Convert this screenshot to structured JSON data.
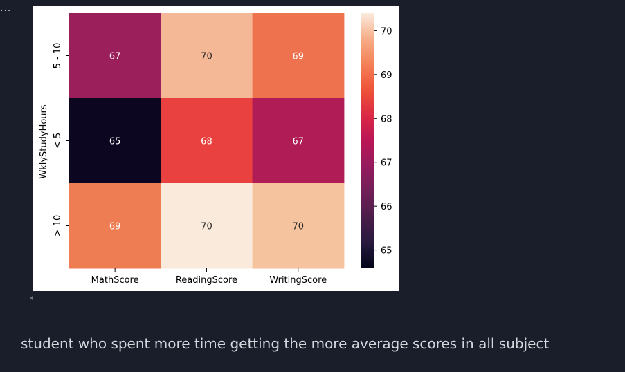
{
  "cell_menu": {
    "label": "..."
  },
  "chart_data": {
    "type": "heatmap",
    "title": "",
    "xlabel": "",
    "ylabel": "WklyStudyHours",
    "x_categories": [
      "MathScore",
      "ReadingScore",
      "WritingScore"
    ],
    "y_categories": [
      "5 - 10",
      "< 5",
      "> 10"
    ],
    "values": [
      [
        67,
        70,
        69
      ],
      [
        65,
        68,
        67
      ],
      [
        69,
        70,
        70
      ]
    ],
    "colorbar": {
      "min": 64.6,
      "max": 70.4,
      "ticks": [
        65,
        66,
        67,
        68,
        69,
        70
      ],
      "colormap": "rocket"
    },
    "cell_colors": [
      [
        "#9b1f5b",
        "#f5b896",
        "#ee724e"
      ],
      [
        "#0c0621",
        "#e8413f",
        "#b01c56"
      ],
      [
        "#ef7d53",
        "#faeadc",
        "#f6c39f"
      ]
    ],
    "annotation_colors": [
      [
        "#ffffff",
        "#262626",
        "#ffffff"
      ],
      [
        "#ffffff",
        "#ffffff",
        "#ffffff"
      ],
      [
        "#ffffff",
        "#262626",
        "#262626"
      ]
    ]
  },
  "markdown": {
    "text": "student who spent more time getting the more average scores in all subject"
  },
  "colors": {
    "page_background": "#1a1e2b",
    "text": "#d4d7de"
  }
}
